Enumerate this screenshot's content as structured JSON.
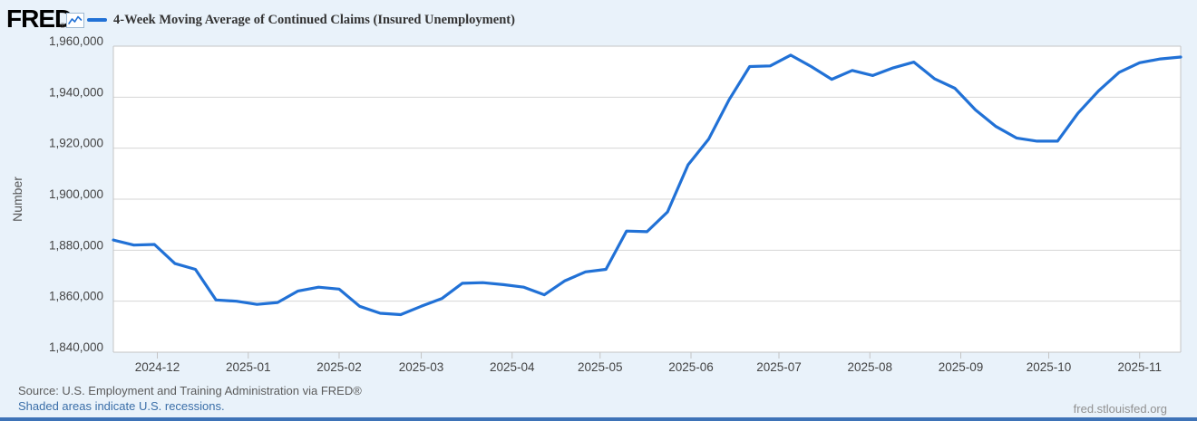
{
  "header": {
    "logo_text": "FRED",
    "registered_mark": "®",
    "legend_label": "4-Week Moving Average of Continued Claims (Insured Unemployment)"
  },
  "footer": {
    "source_line": "Source: U.S. Employment and Training Administration via FRED®",
    "recession_note": "Shaded areas indicate U.S. recessions.",
    "watermark": "fred.stlouisfed.org"
  },
  "colors": {
    "page_background": "#e9f2fa",
    "plot_background": "#ffffff",
    "series_blue": "#2171d6",
    "gridline": "#d6d6d6",
    "plot_border": "#c4c4c4",
    "axis_text": "#444444",
    "link_blue": "#3a6ea8",
    "bottom_bar_blue": "#3e73b7"
  },
  "chart_data": {
    "type": "line",
    "title": "4-Week Moving Average of Continued Claims (Insured Unemployment)",
    "xlabel": "",
    "ylabel": "Number",
    "ylim": [
      1840000,
      1960000
    ],
    "y_ticks": [
      1840000,
      1860000,
      1880000,
      1900000,
      1920000,
      1940000,
      1960000
    ],
    "x_ticks": [
      "2024-12",
      "2025-01",
      "2025-02",
      "2025-03",
      "2025-04",
      "2025-05",
      "2025-06",
      "2025-07",
      "2025-08",
      "2025-09",
      "2025-10",
      "2025-11"
    ],
    "grid": true,
    "legend_position": "top-left",
    "series": [
      {
        "name": "4-Week Moving Average of Continued Claims (Insured Unemployment)",
        "color": "#2171d6",
        "dates": [
          "2024-11-16",
          "2024-11-23",
          "2024-11-30",
          "2024-12-07",
          "2024-12-14",
          "2024-12-21",
          "2024-12-28",
          "2025-01-04",
          "2025-01-11",
          "2025-01-18",
          "2025-01-25",
          "2025-02-01",
          "2025-02-08",
          "2025-02-15",
          "2025-02-22",
          "2025-03-01",
          "2025-03-08",
          "2025-03-15",
          "2025-03-22",
          "2025-03-29",
          "2025-04-05",
          "2025-04-12",
          "2025-04-19",
          "2025-04-26",
          "2025-05-03",
          "2025-05-10",
          "2025-05-17",
          "2025-05-24",
          "2025-05-31",
          "2025-06-07",
          "2025-06-14",
          "2025-06-21",
          "2025-06-28",
          "2025-07-05",
          "2025-07-12",
          "2025-07-19",
          "2025-07-26",
          "2025-08-02",
          "2025-08-09",
          "2025-08-16",
          "2025-08-23",
          "2025-08-30",
          "2025-09-06",
          "2025-09-13",
          "2025-09-20",
          "2025-09-27",
          "2025-10-04",
          "2025-10-11",
          "2025-10-18",
          "2025-10-25",
          "2025-11-01",
          "2025-11-08",
          "2025-11-15"
        ],
        "values": [
          1884000,
          1882000,
          1882250,
          1874750,
          1872500,
          1860500,
          1860000,
          1858750,
          1859500,
          1864000,
          1865500,
          1864750,
          1858000,
          1855250,
          1854750,
          1858000,
          1861000,
          1867000,
          1867250,
          1866500,
          1865500,
          1862500,
          1868000,
          1871500,
          1872500,
          1887500,
          1887250,
          1895000,
          1913500,
          1923500,
          1939000,
          1952000,
          1952250,
          1956500,
          1952000,
          1947000,
          1950500,
          1948500,
          1951500,
          1953750,
          1947250,
          1943500,
          1935000,
          1928500,
          1924000,
          1922750,
          1922750,
          1933750,
          1942500,
          1949750,
          1953500,
          1955000,
          1955750
        ]
      }
    ]
  }
}
